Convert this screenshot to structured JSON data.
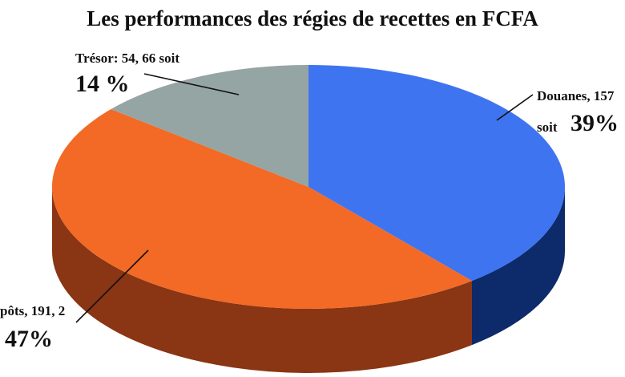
{
  "chart_data": {
    "type": "pie",
    "style": "3d",
    "title": "Les performances des régies de recettes en FCFA",
    "slices": [
      {
        "name": "Douanes",
        "label_line1": "Douanes, 157",
        "label_prefix": "soit",
        "percent_text": "39%",
        "value": 39,
        "color": "#3f74f0",
        "side_color": "#0d2a6b"
      },
      {
        "name": "Impôts",
        "label_line1": "pôts, 191, 2",
        "percent_text": "47%",
        "value": 47,
        "color": "#f26a25",
        "side_color": "#8a3513"
      },
      {
        "name": "Trésor",
        "label_line1": "Trésor: 54, 66 soit",
        "percent_text": "14 %",
        "value": 14,
        "color": "#95a5a3",
        "side_color": "#5f6b69"
      }
    ]
  }
}
